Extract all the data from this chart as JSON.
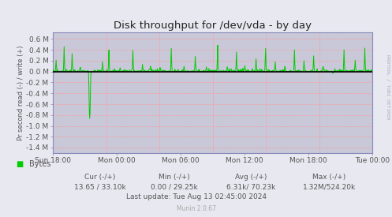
{
  "title": "Disk throughput for /dev/vda - by day",
  "ylabel": "Pr second read (-) / write (+)",
  "xlabel_ticks": [
    "Sun 18:00",
    "Mon 00:00",
    "Mon 06:00",
    "Mon 12:00",
    "Mon 18:00",
    "Tue 00:00"
  ],
  "ytick_labels": [
    "0.6 M",
    "0.4 M",
    "0.2 M",
    "0.0 M",
    "-0.2 M",
    "-0.4 M",
    "-0.6 M",
    "-0.8 M",
    "-1.0 M",
    "-1.2 M",
    "-1.4 M"
  ],
  "ytick_values": [
    0.6,
    0.4,
    0.2,
    0.0,
    -0.2,
    -0.4,
    -0.6,
    -0.8,
    -1.0,
    -1.2,
    -1.4
  ],
  "ylim": [
    -1.5,
    0.72
  ],
  "bg_color": "#e8e8f0",
  "plot_bg_color": "#c8c8d8",
  "grid_color": "#ff9999",
  "line_color": "#00cc00",
  "zero_line_color": "#000000",
  "title_color": "#222222",
  "label_color": "#555555",
  "legend_label": "Bytes",
  "legend_color": "#00cc00",
  "footer_munin": "Munin 2.0.67",
  "right_label": "RRDTOOL / TOBI OETIKER",
  "num_points": 800
}
